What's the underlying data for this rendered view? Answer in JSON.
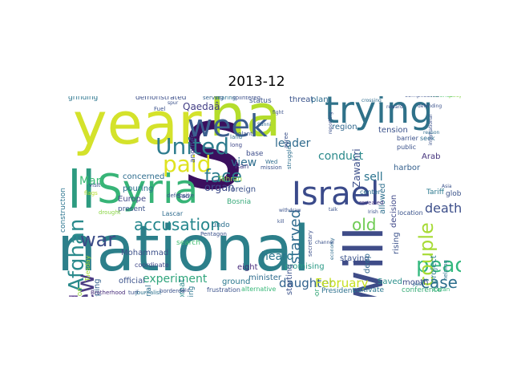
{
  "figure": {
    "title": "2013-12"
  },
  "words": [
    {
      "text": "s",
      "color": "#3b0f5e"
    },
    {
      "text": "national",
      "color": "#2c7f8a"
    },
    {
      "text": "year",
      "color": "#d4e22b"
    },
    {
      "text": "ha",
      "color": "#b4dd2c"
    },
    {
      "text": "will",
      "color": "#3f4c88"
    },
    {
      "text": "ll",
      "color": "#2d9b80"
    },
    {
      "text": "trying",
      "color": "#2f7189"
    },
    {
      "text": "Syria",
      "color": "#37b477"
    },
    {
      "text": "week",
      "color": "#3b5e8e"
    },
    {
      "text": "Israel",
      "color": "#3a4a8a"
    },
    {
      "text": "United",
      "color": "#2e7c8e"
    },
    {
      "text": "paid",
      "color": "#dfe321"
    },
    {
      "text": "peace",
      "color": "#33b87e"
    },
    {
      "text": "Afghan",
      "color": "#2a8a8c"
    },
    {
      "text": "war",
      "color": "#3a4b87"
    },
    {
      "text": "new",
      "color": "#4c3d84"
    },
    {
      "text": "face",
      "color": "#2a7b8e"
    },
    {
      "text": "accusation",
      "color": "#24868c"
    },
    {
      "text": "couple",
      "color": "#a7db35"
    },
    {
      "text": "case",
      "color": "#2d6f8d"
    },
    {
      "text": "old",
      "color": "#6fcb54"
    },
    {
      "text": "death",
      "color": "#3d4f8a"
    },
    {
      "text": "starved",
      "color": "#2e6b8e"
    },
    {
      "text": "daughter",
      "color": "#30618d"
    },
    {
      "text": "February",
      "color": "#c6e020"
    },
    {
      "text": "experiment",
      "color": "#30a57c"
    },
    {
      "text": "heard",
      "color": "#2a768e"
    },
    {
      "text": "leader",
      "color": "#2f6a8d"
    },
    {
      "text": "conduct",
      "color": "#2c8a8c"
    },
    {
      "text": "organ",
      "color": "#3e4a89"
    },
    {
      "text": "view",
      "color": "#2f6e8e"
    },
    {
      "text": "sell",
      "color": "#2b738e"
    },
    {
      "text": "Man",
      "color": "#3bbc75"
    },
    {
      "text": "Qaedaâ",
      "color": "#433e85"
    },
    {
      "text": "Zawahri",
      "color": "#3c4f8a"
    },
    {
      "text": "indicated",
      "color": "#5f3f8f"
    },
    {
      "text": "Mohammad",
      "color": "#3d508a"
    },
    {
      "text": "promising",
      "color": "#2a9a86"
    },
    {
      "text": "staying",
      "color": "#3b528b"
    },
    {
      "text": "Europe",
      "color": "#454a88"
    },
    {
      "text": "concerned",
      "color": "#2f6d8e"
    },
    {
      "text": "pouring",
      "color": "#2d708e"
    },
    {
      "text": "foreign",
      "color": "#3b528b"
    },
    {
      "text": "eight",
      "color": "#472a7a"
    },
    {
      "text": "minister",
      "color": "#2f6c8e"
    },
    {
      "text": "diplomat",
      "color": "#2c8c8c"
    },
    {
      "text": "keeping",
      "color": "#34618d"
    },
    {
      "text": "official",
      "color": "#3b528b"
    },
    {
      "text": "ground",
      "color": "#2a788e"
    },
    {
      "text": "Saved",
      "color": "#2a8f8b"
    },
    {
      "text": "month",
      "color": "#3e4a89"
    },
    {
      "text": "conference",
      "color": "#3aad79"
    },
    {
      "text": "deep",
      "color": "#31688e"
    },
    {
      "text": "project",
      "color": "#2b7f8e"
    },
    {
      "text": "rising",
      "color": "#3b528b"
    },
    {
      "text": "Tariff",
      "color": "#2a788e"
    },
    {
      "text": "global",
      "color": "#3a528a"
    },
    {
      "text": "decision",
      "color": "#3f4889"
    },
    {
      "text": "allowed",
      "color": "#2e6f8e"
    },
    {
      "text": "harbor",
      "color": "#35608d"
    },
    {
      "text": "tension",
      "color": "#3b528b"
    },
    {
      "text": "region",
      "color": "#31688e"
    },
    {
      "text": "Arab",
      "color": "#45337d"
    },
    {
      "text": "threat",
      "color": "#3a538b"
    },
    {
      "text": "plan",
      "color": "#2f6c8e"
    },
    {
      "text": "status",
      "color": "#3a538b"
    },
    {
      "text": "another",
      "color": "#3c4e8a"
    },
    {
      "text": "base",
      "color": "#3d4d8a"
    },
    {
      "text": "Ran",
      "color": "#433d84"
    },
    {
      "text": "construction",
      "color": "#2b748e"
    },
    {
      "text": "Bosnia",
      "color": "#3aaa7b"
    },
    {
      "text": "Tehran",
      "color": "#8fd744"
    },
    {
      "text": "undo",
      "color": "#2d708e"
    },
    {
      "text": "search",
      "color": "#43bf71"
    },
    {
      "text": "becoming",
      "color": "#2b768e"
    },
    {
      "text": "starting",
      "color": "#3b528b"
    },
    {
      "text": "neighbor",
      "color": "#3aa97b"
    },
    {
      "text": "demonstrated",
      "color": "#3c4f8a"
    },
    {
      "text": "present",
      "color": "#3b528b"
    },
    {
      "text": "material",
      "color": "#2e6e8e"
    },
    {
      "text": "coordinate",
      "color": "#3f4788"
    },
    {
      "text": "suspicion",
      "color": "#97d83f"
    },
    {
      "text": "grinding",
      "color": "#2b758e"
    },
    {
      "text": "Tuesday",
      "color": "#a5db36"
    },
    {
      "text": "Lascar",
      "color": "#2f6c8e"
    },
    {
      "text": "frustration",
      "color": "#3b528b"
    },
    {
      "text": "President",
      "color": "#2d718e"
    },
    {
      "text": "cultivate",
      "color": "#2a778e"
    },
    {
      "text": "secretary",
      "color": "#3c508b"
    },
    {
      "text": "alternative",
      "color": "#37b778"
    },
    {
      "text": "Pentagon",
      "color": "#3b528b"
    },
    {
      "text": "Sad",
      "color": "#3d4d8a"
    },
    {
      "text": "Brotherhood",
      "color": "#472c7a"
    },
    {
      "text": "location",
      "color": "#3a538b"
    },
    {
      "text": "center",
      "color": "#2d708e"
    },
    {
      "text": "revealed",
      "color": "#463480"
    },
    {
      "text": "public",
      "color": "#3b528b"
    },
    {
      "text": "barrier",
      "color": "#3b518b"
    },
    {
      "text": "seek",
      "color": "#2f6c8e"
    },
    {
      "text": "Kazan",
      "color": "#34b679"
    },
    {
      "text": "people",
      "color": "#86d549"
    },
    {
      "text": "mission",
      "color": "#3b528b"
    },
    {
      "text": "struggle",
      "color": "#2e6f8e"
    },
    {
      "text": "agree",
      "color": "#3b528b"
    },
    {
      "text": "long",
      "color": "#3f4889"
    },
    {
      "text": "land",
      "color": "#2f6d8e"
    },
    {
      "text": "plant",
      "color": "#3b528b"
    },
    {
      "text": "sharing",
      "color": "#2c728e"
    },
    {
      "text": "serving",
      "color": "#34618d"
    },
    {
      "text": "splintered",
      "color": "#3c4f8a"
    },
    {
      "text": "Wed",
      "color": "#2f6c8e"
    },
    {
      "text": "defensive",
      "color": "#3b528b"
    },
    {
      "text": "drought",
      "color": "#8bd646"
    },
    {
      "text": "helping",
      "color": "#2a768e"
    },
    {
      "text": "Fuel",
      "color": "#3b528b"
    },
    {
      "text": "visit",
      "color": "#3b528b"
    },
    {
      "text": "flags",
      "color": "#b5de2b"
    },
    {
      "text": "violence",
      "color": "#4ac16d"
    },
    {
      "text": "complicated",
      "color": "#3b528b"
    },
    {
      "text": "journalist",
      "color": "#2d718e"
    },
    {
      "text": "turf",
      "color": "#3b528b"
    },
    {
      "text": "bordered",
      "color": "#3b528b"
    },
    {
      "text": "reporting",
      "color": "#3b528b"
    },
    {
      "text": "defending",
      "color": "#3b528b"
    },
    {
      "text": "reward",
      "color": "#3b528b"
    },
    {
      "text": "crossing",
      "color": "#2f6c8e"
    },
    {
      "text": "withdraw",
      "color": "#3b528b"
    },
    {
      "text": "economy",
      "color": "#2f6c8e"
    },
    {
      "text": "channel",
      "color": "#3b528b"
    },
    {
      "text": "Sunni",
      "color": "#2f6c8e"
    },
    {
      "text": "talk",
      "color": "#3b528b"
    },
    {
      "text": "Irish",
      "color": "#3b528b"
    },
    {
      "text": "pass",
      "color": "#2f6c8e"
    },
    {
      "text": "spur",
      "color": "#3b528b"
    },
    {
      "text": "told",
      "color": "#3b528b"
    },
    {
      "text": "kill",
      "color": "#3b528b"
    },
    {
      "text": "fight",
      "color": "#3b528b"
    },
    {
      "text": "international",
      "color": "#3b528b"
    },
    {
      "text": "Asia",
      "color": "#3b528b"
    },
    {
      "text": "reason",
      "color": "#2f6c8e"
    }
  ]
}
